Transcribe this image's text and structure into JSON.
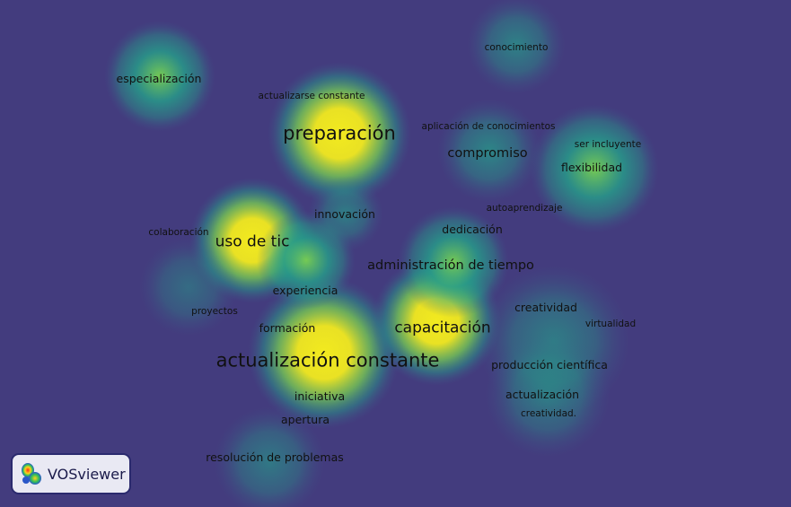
{
  "app": {
    "logo_label": "VOSviewer"
  },
  "colors": {
    "background": "#433c7e",
    "low": "#3b5f8c",
    "mid": "#25a08a",
    "high": "#79d151",
    "peak": "#f2ea1f"
  },
  "terms": [
    {
      "label": "conocimiento",
      "weight": 0.55
    },
    {
      "label": "especialización",
      "weight": 0.65
    },
    {
      "label": "actualizarse constante",
      "weight": 0.35
    },
    {
      "label": "preparación",
      "weight": 1.0
    },
    {
      "label": "aplicación de conocimientos",
      "weight": 0.4
    },
    {
      "label": "compromiso",
      "weight": 0.6
    },
    {
      "label": "ser incluyente",
      "weight": 0.35
    },
    {
      "label": "flexibilidad",
      "weight": 0.6
    },
    {
      "label": "autoaprendizaje",
      "weight": 0.35
    },
    {
      "label": "innovación",
      "weight": 0.5
    },
    {
      "label": "colaboración",
      "weight": 0.3
    },
    {
      "label": "uso de tic",
      "weight": 0.95
    },
    {
      "label": "dedicación",
      "weight": 0.5
    },
    {
      "label": "administración de tiempo",
      "weight": 0.75
    },
    {
      "label": "experiencia",
      "weight": 0.5
    },
    {
      "label": "proyectos",
      "weight": 0.3
    },
    {
      "label": "creatividad",
      "weight": 0.45
    },
    {
      "label": "virtualidad",
      "weight": 0.35
    },
    {
      "label": "formación",
      "weight": 0.45
    },
    {
      "label": "capacitación",
      "weight": 0.9
    },
    {
      "label": "actualización constante",
      "weight": 1.0
    },
    {
      "label": "producción científica",
      "weight": 0.5
    },
    {
      "label": "iniciativa",
      "weight": 0.4
    },
    {
      "label": "actualización",
      "weight": 0.45
    },
    {
      "label": "creatividad.",
      "weight": 0.3
    },
    {
      "label": "apertura",
      "weight": 0.35
    },
    {
      "label": "resolución de problemas",
      "weight": 0.45
    }
  ]
}
